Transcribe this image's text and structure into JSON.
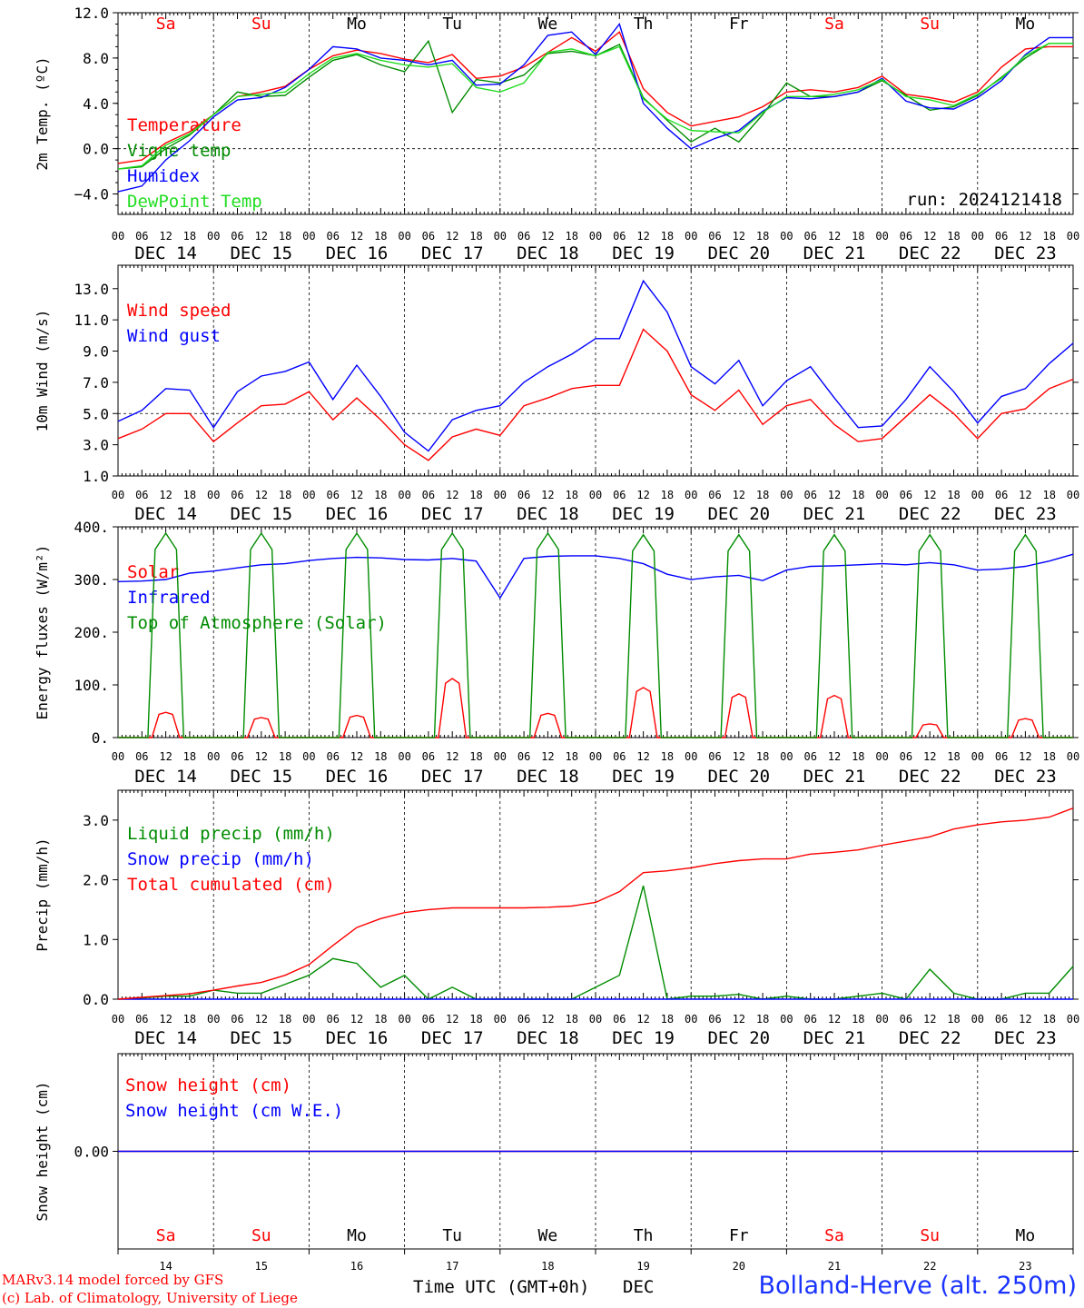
{
  "run_label": "run: 2024121418",
  "days": [
    "DEC 14",
    "DEC 15",
    "DEC 16",
    "DEC 17",
    "DEC 18",
    "DEC 19",
    "DEC 20",
    "DEC 21",
    "DEC 22",
    "DEC 23"
  ],
  "day_numbers": [
    "14",
    "15",
    "16",
    "17",
    "18",
    "19",
    "20",
    "21",
    "22",
    "23"
  ],
  "weekdays": [
    "Sa",
    "Su",
    "Mo",
    "Tu",
    "We",
    "Th",
    "Fr",
    "Sa",
    "Su",
    "Mo"
  ],
  "weekday_colors": [
    "#ff0000",
    "#ff0000",
    "#000000",
    "#000000",
    "#000000",
    "#000000",
    "#000000",
    "#ff0000",
    "#ff0000",
    "#000000"
  ],
  "hour_ticks": [
    "00",
    "06",
    "12",
    "18"
  ],
  "footer": {
    "credit_line1": "MARv3.14 model forced by GFS",
    "credit_line2": "(c) Lab. of Climatology, University of Liege",
    "xaxis_title": "Time UTC (GMT+0h)",
    "xaxis_month": "DEC",
    "station": "Bolland-Herve (alt. 250m)"
  },
  "colors": {
    "red": "#ff0000",
    "green": "#008c00",
    "blue": "#0000ff",
    "lightgreen": "#22dd22"
  },
  "chart_data": [
    {
      "type": "line",
      "ylabel": "2m Temp. (ºC)",
      "ylim": [
        -5.8,
        12.0
      ],
      "yticks": [
        "12.0",
        "8.0",
        "4.0",
        "0.0",
        "−4.0"
      ],
      "ytick_values": [
        12,
        8,
        4,
        0,
        -4
      ],
      "ref_line": 0,
      "x_unit": "hours since DEC 14 00 UTC",
      "x": [
        0,
        6,
        12,
        18,
        24,
        30,
        36,
        42,
        48,
        54,
        60,
        66,
        72,
        78,
        84,
        90,
        96,
        102,
        108,
        114,
        120,
        126,
        132,
        138,
        144,
        150,
        156,
        162,
        168,
        174,
        180,
        186,
        192,
        198,
        204,
        210,
        216,
        222,
        228,
        234,
        240
      ],
      "series": [
        {
          "name": "Temperature",
          "color": "#ff0000",
          "values": [
            -1.3,
            -1.0,
            0.5,
            1.5,
            3.0,
            4.6,
            5.0,
            5.5,
            7.0,
            8.2,
            8.7,
            8.4,
            7.9,
            7.6,
            8.3,
            6.2,
            6.4,
            7.2,
            8.5,
            9.8,
            8.6,
            10.3,
            5.3,
            3.2,
            2.0,
            2.4,
            2.8,
            3.7,
            5.0,
            5.2,
            5.0,
            5.4,
            6.4,
            4.8,
            4.5,
            4.1,
            5.0,
            7.2,
            8.8,
            9.0,
            9.0
          ]
        },
        {
          "name": "Vigne temp",
          "color": "#008c00",
          "values": [
            -1.8,
            -1.6,
            0.0,
            1.2,
            3.0,
            5.0,
            4.6,
            4.7,
            6.3,
            7.8,
            8.3,
            7.4,
            6.8,
            9.5,
            3.2,
            6.1,
            5.8,
            6.5,
            8.4,
            8.6,
            8.2,
            9.2,
            4.5,
            2.5,
            0.6,
            1.8,
            0.6,
            3.0,
            5.8,
            4.6,
            4.6,
            5.0,
            6.0,
            4.7,
            3.4,
            3.7,
            4.7,
            6.3,
            8.0,
            9.3,
            9.3
          ]
        },
        {
          "name": "Humidex",
          "color": "#0000ff",
          "values": [
            -3.8,
            -3.3,
            -1.0,
            0.7,
            2.8,
            4.3,
            4.5,
            5.4,
            7.0,
            9.0,
            8.8,
            8.0,
            7.8,
            7.4,
            7.8,
            5.6,
            5.7,
            7.4,
            10.0,
            10.3,
            8.3,
            11.0,
            4.0,
            1.8,
            0.0,
            0.9,
            1.6,
            3.3,
            4.5,
            4.4,
            4.6,
            5.0,
            6.2,
            4.2,
            3.6,
            3.5,
            4.5,
            6.0,
            8.3,
            9.8,
            9.8
          ]
        },
        {
          "name": "DewPoint Temp",
          "color": "#22dd22",
          "values": [
            -1.8,
            -1.5,
            0.3,
            1.3,
            3.0,
            4.6,
            4.8,
            5.0,
            6.6,
            8.0,
            8.4,
            7.8,
            7.4,
            7.2,
            7.5,
            5.4,
            5.0,
            5.8,
            8.5,
            8.8,
            8.2,
            9.0,
            4.4,
            2.6,
            1.6,
            1.5,
            1.4,
            3.2,
            4.6,
            4.6,
            4.8,
            5.2,
            6.1,
            4.6,
            4.3,
            3.8,
            4.8,
            6.2,
            8.2,
            9.3,
            9.3
          ]
        }
      ]
    },
    {
      "type": "line",
      "ylabel": "10m Wind (m/s)",
      "ylim": [
        1.0,
        14.5
      ],
      "yticks": [
        "13.0",
        "11.0",
        "9.0",
        "7.0",
        "5.0",
        "3.0",
        "1.0"
      ],
      "ytick_values": [
        13,
        11,
        9,
        7,
        5,
        3,
        1
      ],
      "ref_line": 5,
      "x_unit": "hours since DEC 14 00 UTC",
      "x": [
        0,
        6,
        12,
        18,
        24,
        30,
        36,
        42,
        48,
        54,
        60,
        66,
        72,
        78,
        84,
        90,
        96,
        102,
        108,
        114,
        120,
        126,
        132,
        138,
        144,
        150,
        156,
        162,
        168,
        174,
        180,
        186,
        192,
        198,
        204,
        210,
        216,
        222,
        228,
        234,
        240
      ],
      "series": [
        {
          "name": "Wind speed",
          "color": "#ff0000",
          "values": [
            3.4,
            4.0,
            5.0,
            5.0,
            3.2,
            4.4,
            5.5,
            5.6,
            6.4,
            4.6,
            6.0,
            4.6,
            3.0,
            2.0,
            3.5,
            4.0,
            3.6,
            5.5,
            6.0,
            6.6,
            6.8,
            6.8,
            10.4,
            9.0,
            6.2,
            5.2,
            6.5,
            4.3,
            5.5,
            5.9,
            4.3,
            3.2,
            3.4,
            4.8,
            6.2,
            5.0,
            3.4,
            5.0,
            5.3,
            6.6,
            7.2
          ]
        },
        {
          "name": "Wind gust",
          "color": "#0000ff",
          "values": [
            4.5,
            5.2,
            6.6,
            6.5,
            4.1,
            6.4,
            7.4,
            7.7,
            8.3,
            5.9,
            8.1,
            6.1,
            3.8,
            2.6,
            4.6,
            5.2,
            5.5,
            7.0,
            8.0,
            8.8,
            9.8,
            9.8,
            13.5,
            11.5,
            8.0,
            6.9,
            8.4,
            5.5,
            7.1,
            8.0,
            6.0,
            4.1,
            4.2,
            5.9,
            8.0,
            6.4,
            4.4,
            6.1,
            6.6,
            8.2,
            9.5
          ]
        }
      ]
    },
    {
      "type": "line",
      "ylabel": "Energy fluxes (W/m²)",
      "ylim": [
        0,
        400
      ],
      "yticks": [
        "400.",
        "300.",
        "200.",
        "100.",
        "0."
      ],
      "ytick_values": [
        400,
        300,
        200,
        100,
        0
      ],
      "x_unit": "hours since DEC 14 00 UTC",
      "x": [
        0,
        6,
        12,
        18,
        24,
        30,
        36,
        42,
        48,
        54,
        60,
        66,
        72,
        78,
        84,
        90,
        96,
        102,
        108,
        114,
        120,
        126,
        132,
        138,
        144,
        150,
        156,
        162,
        168,
        174,
        180,
        186,
        192,
        198,
        204,
        210,
        216,
        222,
        228,
        234,
        240
      ],
      "series": [
        {
          "name": "Solar",
          "color": "#ff0000",
          "daily_peak": [
            48,
            38,
            42,
            112,
            46,
            95,
            83,
            80,
            26,
            36
          ]
        },
        {
          "name": "Infrared",
          "color": "#0000ff",
          "values": [
            296,
            297,
            300,
            312,
            316,
            322,
            328,
            330,
            336,
            340,
            342,
            341,
            338,
            337,
            340,
            335,
            265,
            340,
            344,
            345,
            345,
            340,
            330,
            310,
            300,
            305,
            308,
            298,
            318,
            325,
            326,
            328,
            330,
            328,
            332,
            328,
            318,
            320,
            325,
            335,
            348
          ]
        },
        {
          "name": "Top of Atmosphere (Solar)",
          "color": "#008c00",
          "daily_peak": [
            388,
            388,
            388,
            388,
            388,
            385,
            385,
            385,
            385,
            385
          ]
        }
      ]
    },
    {
      "type": "line",
      "ylabel": "Precip (mm/h)",
      "ylim": [
        0,
        3.5
      ],
      "yticks": [
        "3.0",
        "2.0",
        "1.0",
        "0.0"
      ],
      "ytick_values": [
        3,
        2,
        1,
        0
      ],
      "x_unit": "hours since DEC 14 00 UTC",
      "x": [
        0,
        6,
        12,
        18,
        24,
        30,
        36,
        42,
        48,
        54,
        60,
        66,
        72,
        78,
        84,
        90,
        96,
        102,
        108,
        114,
        120,
        126,
        132,
        138,
        144,
        150,
        156,
        162,
        168,
        174,
        180,
        186,
        192,
        198,
        204,
        210,
        216,
        222,
        228,
        234,
        240
      ],
      "series": [
        {
          "name": "Liquid precip (mm/h)",
          "color": "#008c00",
          "values": [
            0.0,
            0.02,
            0.05,
            0.05,
            0.15,
            0.1,
            0.1,
            0.25,
            0.4,
            0.68,
            0.6,
            0.2,
            0.4,
            0.0,
            0.2,
            0.0,
            0.0,
            0.0,
            0.0,
            0.0,
            0.2,
            0.4,
            1.9,
            0.0,
            0.05,
            0.05,
            0.08,
            0.0,
            0.05,
            0.0,
            0.0,
            0.05,
            0.1,
            0.0,
            0.5,
            0.1,
            0.0,
            0.0,
            0.1,
            0.1,
            0.55
          ]
        },
        {
          "name": "Snow precip (mm/h)",
          "color": "#0000ff",
          "values": [
            0,
            0,
            0,
            0,
            0,
            0,
            0,
            0,
            0,
            0,
            0,
            0,
            0,
            0,
            0,
            0,
            0,
            0,
            0,
            0,
            0,
            0,
            0,
            0,
            0,
            0,
            0,
            0,
            0,
            0,
            0,
            0,
            0,
            0,
            0,
            0,
            0,
            0,
            0,
            0,
            0
          ]
        },
        {
          "name": "Total cumulated (cm)",
          "color": "#ff0000",
          "values": [
            0.0,
            0.03,
            0.06,
            0.09,
            0.15,
            0.22,
            0.28,
            0.4,
            0.58,
            0.9,
            1.2,
            1.35,
            1.45,
            1.5,
            1.53,
            1.53,
            1.53,
            1.53,
            1.54,
            1.56,
            1.62,
            1.8,
            2.12,
            2.15,
            2.2,
            2.27,
            2.32,
            2.35,
            2.35,
            2.43,
            2.46,
            2.5,
            2.58,
            2.65,
            2.72,
            2.85,
            2.92,
            2.97,
            3.0,
            3.05,
            3.2
          ]
        }
      ]
    },
    {
      "type": "line",
      "ylabel": "Snow height (cm)",
      "ylim": [
        -1,
        1
      ],
      "yticks": [
        "0.00"
      ],
      "ytick_values": [
        0
      ],
      "x_unit": "hours since DEC 14 00 UTC",
      "x": [
        0,
        240
      ],
      "series": [
        {
          "name": "Snow height (cm)",
          "color": "#ff0000",
          "values": [
            0,
            0
          ]
        },
        {
          "name": "Snow height (cm W.E.)",
          "color": "#0000ff",
          "values": [
            0,
            0
          ]
        }
      ]
    }
  ]
}
